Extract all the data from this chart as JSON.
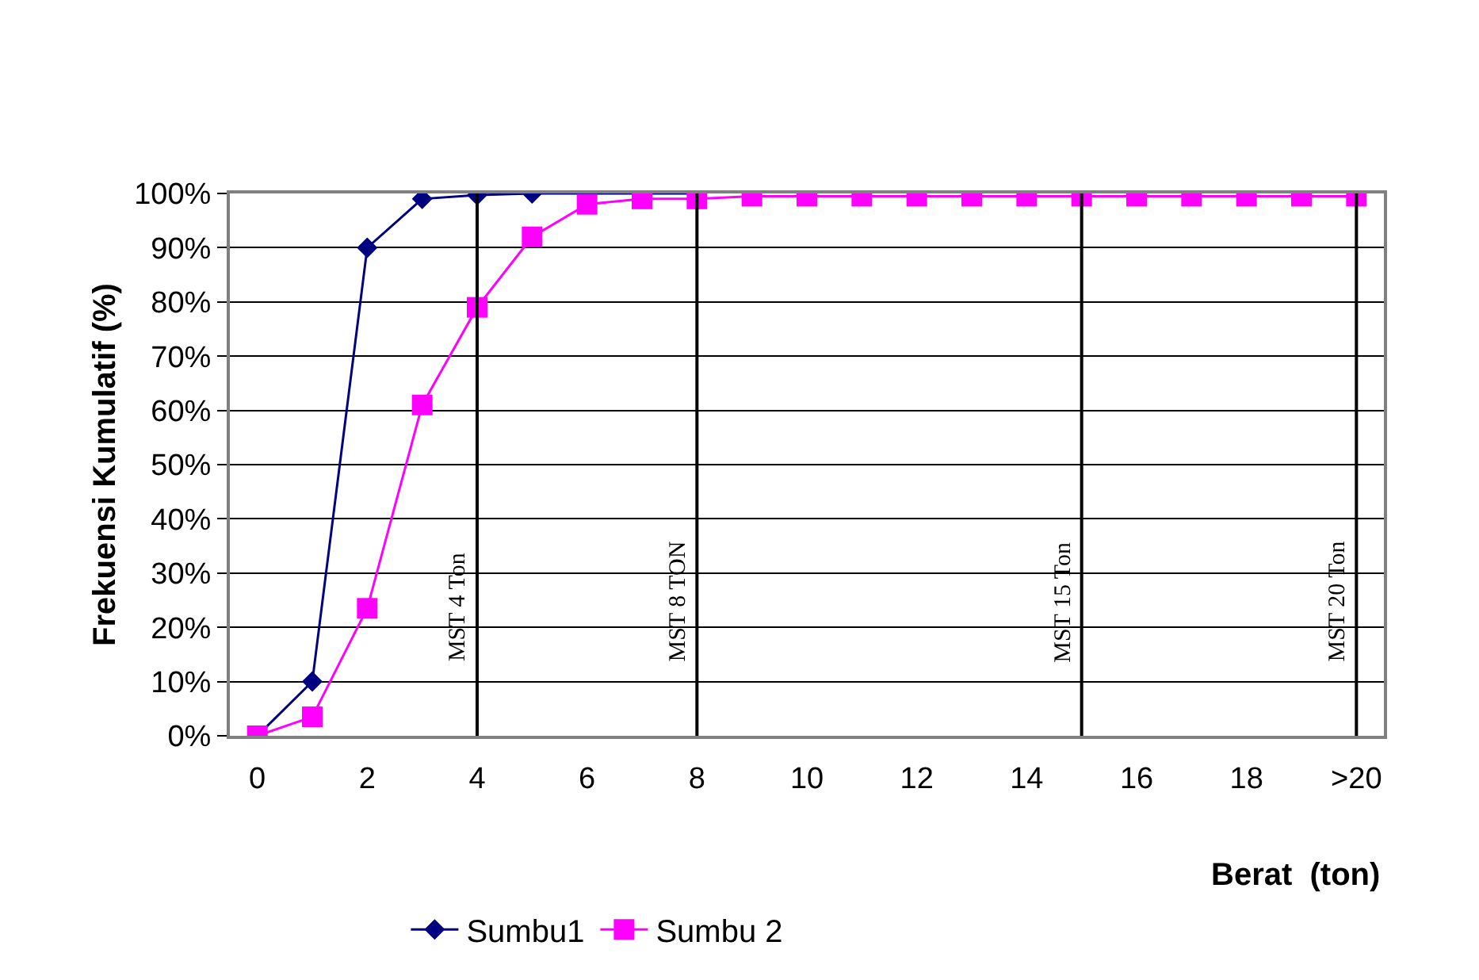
{
  "chart_data": {
    "type": "line",
    "xlabel": "Berat  (ton)",
    "ylabel": "Frekuensi Kumulatif (%)",
    "x": [
      0,
      1,
      2,
      3,
      4,
      5,
      6,
      7,
      8,
      9,
      10,
      11,
      12,
      13,
      14,
      15,
      16,
      17,
      18,
      19,
      20
    ],
    "series": [
      {
        "name": "Sumbu1",
        "color": "#000080",
        "marker": "diamond",
        "values": [
          0,
          10,
          90,
          99,
          99.7,
          100,
          100,
          100,
          100,
          null,
          null,
          null,
          null,
          null,
          null,
          null,
          null,
          null,
          null,
          null,
          null
        ]
      },
      {
        "name": "Sumbu 2",
        "color": "#ff00ff",
        "marker": "square",
        "values": [
          0,
          3.5,
          23.5,
          61,
          79,
          92,
          98,
          99,
          99,
          99.5,
          99.5,
          99.5,
          99.5,
          99.5,
          99.5,
          99.5,
          99.5,
          99.5,
          99.5,
          99.5,
          99.5
        ]
      }
    ],
    "xlim": [
      -0.5,
      20.5
    ],
    "xticks": [
      0,
      2,
      4,
      6,
      8,
      10,
      12,
      14,
      16,
      18,
      {
        "value": 20,
        "label": ">20"
      }
    ],
    "ylim": [
      0,
      100
    ],
    "yticks": [
      {
        "value": 0,
        "label": "0%"
      },
      {
        "value": 10,
        "label": "10%"
      },
      {
        "value": 20,
        "label": "20%"
      },
      {
        "value": 30,
        "label": "30%"
      },
      {
        "value": 40,
        "label": "40%"
      },
      {
        "value": 50,
        "label": "50%"
      },
      {
        "value": 60,
        "label": "60%"
      },
      {
        "value": 70,
        "label": "70%"
      },
      {
        "value": 80,
        "label": "80%"
      },
      {
        "value": 90,
        "label": "90%"
      },
      {
        "value": 100,
        "label": "100%"
      }
    ],
    "grid": "y",
    "legend": "bottom",
    "line_style": "solid",
    "ref_lines": [
      {
        "axis": "x",
        "value": 4,
        "label": "MST 4 Ton",
        "color": "#000000"
      },
      {
        "axis": "x",
        "value": 8,
        "label": "MST 8 TON",
        "color": "#000000"
      },
      {
        "axis": "x",
        "value": 15,
        "label": "MST 15 Ton",
        "color": "#000000"
      },
      {
        "axis": "x",
        "value": 20,
        "label": "MST 20 Ton",
        "color": "#000000"
      }
    ]
  }
}
